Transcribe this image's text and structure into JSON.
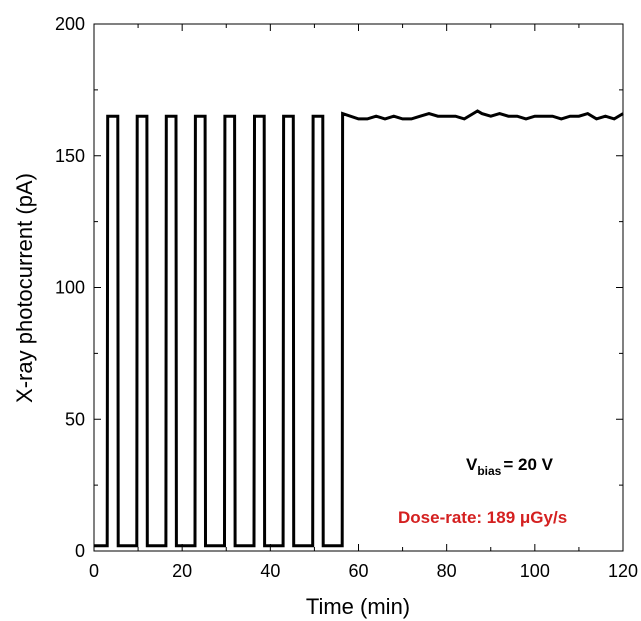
{
  "chart_data": {
    "type": "line",
    "xlabel": "Time (min)",
    "ylabel": "X-ray photocurrent (pA)",
    "xlim": [
      0,
      120
    ],
    "ylim": [
      0,
      200
    ],
    "xticks": [
      0,
      20,
      40,
      60,
      80,
      100,
      120
    ],
    "yticks": [
      0,
      50,
      100,
      150,
      200
    ],
    "grid": false,
    "legend": "none",
    "line_color": "#000000",
    "annotations": {
      "vbias_main": "V",
      "vbias_sub": "bias",
      "vbias_rest": "= 20 V",
      "dose_rate": "Dose-rate: 189 μGy/s",
      "dose_rate_color": "#d42020"
    },
    "series": [
      {
        "description_levels": {
          "on": 165,
          "off": 2
        },
        "x": [
          0,
          3.0,
          3.1,
          5.4,
          5.5,
          9.7,
          9.8,
          12.0,
          12.1,
          16.3,
          16.4,
          18.6,
          18.7,
          22.9,
          23.0,
          25.2,
          25.3,
          29.6,
          29.7,
          31.9,
          32.0,
          36.3,
          36.4,
          38.6,
          38.7,
          42.9,
          43.0,
          45.2,
          45.3,
          49.6,
          49.7,
          51.9,
          52.0,
          56.3,
          56.4,
          60,
          62,
          64,
          66,
          68,
          70,
          72,
          74,
          76,
          78,
          80,
          82,
          84,
          86,
          87,
          88,
          90,
          92,
          94,
          96,
          98,
          100,
          102,
          104,
          106,
          108,
          110,
          112,
          114,
          116,
          118,
          120
        ],
        "y": [
          2,
          2,
          165,
          165,
          2,
          2,
          165,
          165,
          2,
          2,
          165,
          165,
          2,
          2,
          165,
          165,
          2,
          2,
          165,
          165,
          2,
          2,
          165,
          165,
          2,
          2,
          165,
          165,
          2,
          2,
          165,
          165,
          2,
          2,
          166,
          164,
          164,
          165,
          164,
          165,
          164,
          164,
          165,
          166,
          165,
          165,
          165,
          164,
          166,
          167,
          166,
          165,
          166,
          165,
          165,
          164,
          165,
          165,
          165,
          164,
          165,
          165,
          166,
          164,
          165,
          164,
          166
        ]
      }
    ]
  }
}
